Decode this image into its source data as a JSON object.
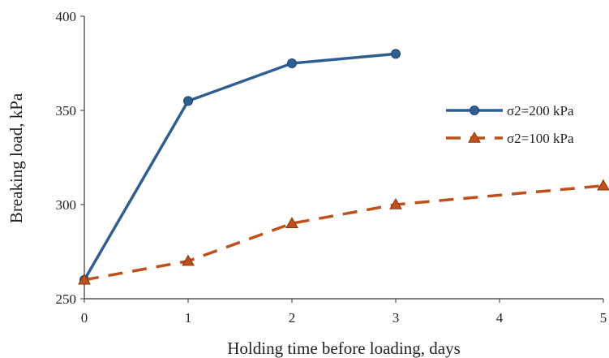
{
  "chart_data": {
    "type": "line",
    "title": "",
    "xlabel": "Holding time before loading, days",
    "ylabel": "Breaking load, kPa",
    "xlim": [
      0,
      5
    ],
    "ylim": [
      250,
      400
    ],
    "x_ticks": [
      0,
      1,
      2,
      3,
      4,
      5
    ],
    "y_ticks": [
      250,
      300,
      350,
      400
    ],
    "grid": false,
    "legend_position": "right",
    "series": [
      {
        "name": "σ2=200 kPa",
        "x": [
          0,
          1,
          2,
          3
        ],
        "values": [
          260,
          355,
          375,
          380
        ],
        "color": "#2e5f93",
        "marker": "circle",
        "line_style": "solid"
      },
      {
        "name": "σ2=100 kPa",
        "x": [
          0,
          1,
          2,
          3,
          5
        ],
        "values": [
          260,
          270,
          290,
          300,
          310
        ],
        "color": "#c0501a",
        "marker": "triangle",
        "line_style": "dashed"
      }
    ]
  }
}
